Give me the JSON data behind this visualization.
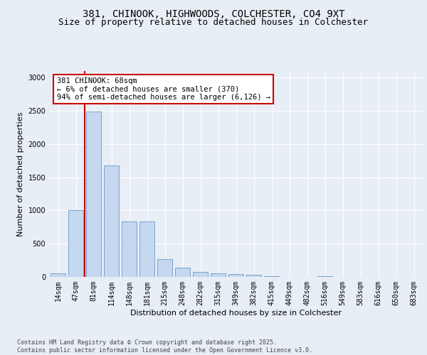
{
  "title1": "381, CHINOOK, HIGHWOODS, COLCHESTER, CO4 9XT",
  "title2": "Size of property relative to detached houses in Colchester",
  "xlabel": "Distribution of detached houses by size in Colchester",
  "ylabel": "Number of detached properties",
  "categories": [
    "14sqm",
    "47sqm",
    "81sqm",
    "114sqm",
    "148sqm",
    "181sqm",
    "215sqm",
    "248sqm",
    "282sqm",
    "315sqm",
    "349sqm",
    "382sqm",
    "415sqm",
    "449sqm",
    "482sqm",
    "516sqm",
    "549sqm",
    "583sqm",
    "616sqm",
    "650sqm",
    "683sqm"
  ],
  "values": [
    50,
    1000,
    2490,
    1680,
    830,
    830,
    270,
    140,
    75,
    55,
    40,
    30,
    10,
    5,
    0,
    15,
    5,
    0,
    0,
    0,
    0
  ],
  "bar_color": "#c5d8ef",
  "bar_edge_color": "#6699cc",
  "vline_x": 1.5,
  "vline_color": "#cc0000",
  "annotation_text": "381 CHINOOK: 68sqm\n← 6% of detached houses are smaller (370)\n94% of semi-detached houses are larger (6,126) →",
  "annotation_box_color": "#ffffff",
  "annotation_box_edge": "#cc0000",
  "ylim": [
    0,
    3100
  ],
  "yticks": [
    0,
    500,
    1000,
    1500,
    2000,
    2500,
    3000
  ],
  "bg_color": "#e8eef5",
  "plot_bg_color": "#e8eef5",
  "footer": "Contains HM Land Registry data © Crown copyright and database right 2025.\nContains public sector information licensed under the Open Government Licence v3.0.",
  "title_fontsize": 10,
  "subtitle_fontsize": 9,
  "axis_fontsize": 8,
  "tick_fontsize": 7,
  "footer_fontsize": 6
}
